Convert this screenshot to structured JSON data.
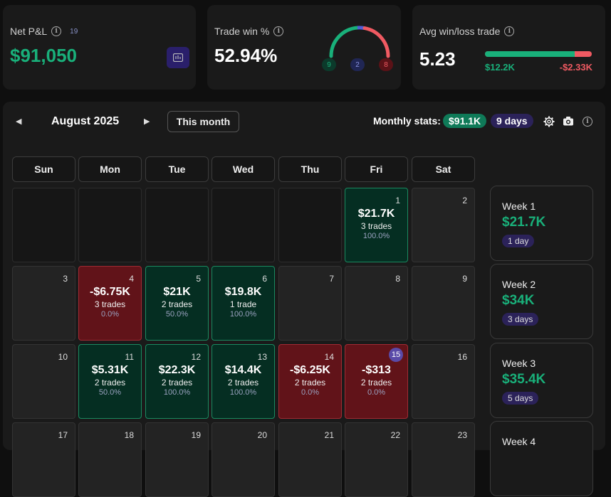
{
  "net_pnl": {
    "label": "Net P&L",
    "count": "19",
    "value": "$91,050"
  },
  "trade_win": {
    "label": "Trade win %",
    "value": "52.94%",
    "wins": "9",
    "breakeven": "2",
    "losses": "8"
  },
  "avg_winloss": {
    "label": "Avg win/loss trade",
    "value": "5.23",
    "avg_win": "$12.2K",
    "avg_loss": "-$2.33K",
    "win_share": 0.84
  },
  "calendar": {
    "month": "August 2025",
    "this_month_label": "This month",
    "monthly_stats_label": "Monthly stats:",
    "monthly_pnl": "$91.1K",
    "monthly_days": "9 days",
    "weekdays": [
      "Sun",
      "Mon",
      "Tue",
      "Wed",
      "Thu",
      "Fri",
      "Sat"
    ],
    "days": {
      "1": {
        "pnl": "$21.7K",
        "trades": "3 trades",
        "rate": "100.0%",
        "type": "win"
      },
      "4": {
        "pnl": "-$6.75K",
        "trades": "3 trades",
        "rate": "0.0%",
        "type": "loss"
      },
      "5": {
        "pnl": "$21K",
        "trades": "2 trades",
        "rate": "50.0%",
        "type": "win"
      },
      "6": {
        "pnl": "$19.8K",
        "trades": "1 trade",
        "rate": "100.0%",
        "type": "win"
      },
      "11": {
        "pnl": "$5.31K",
        "trades": "2 trades",
        "rate": "50.0%",
        "type": "win"
      },
      "12": {
        "pnl": "$22.3K",
        "trades": "2 trades",
        "rate": "100.0%",
        "type": "win"
      },
      "13": {
        "pnl": "$14.4K",
        "trades": "2 trades",
        "rate": "100.0%",
        "type": "win"
      },
      "14": {
        "pnl": "-$6.25K",
        "trades": "2 trades",
        "rate": "0.0%",
        "type": "loss"
      },
      "15": {
        "pnl": "-$313",
        "trades": "2 trades",
        "rate": "0.0%",
        "type": "loss",
        "today": true
      }
    },
    "weeks": [
      {
        "label": "Week 1",
        "value": "$21.7K",
        "days": "1 day"
      },
      {
        "label": "Week 2",
        "value": "$34K",
        "days": "3 days"
      },
      {
        "label": "Week 3",
        "value": "$35.4K",
        "days": "5 days"
      },
      {
        "label": "Week 4",
        "value": "",
        "days": ""
      }
    ]
  },
  "colors": {
    "green": "#19b07a",
    "red": "#f05a62",
    "blue": "#4f5fd6"
  }
}
